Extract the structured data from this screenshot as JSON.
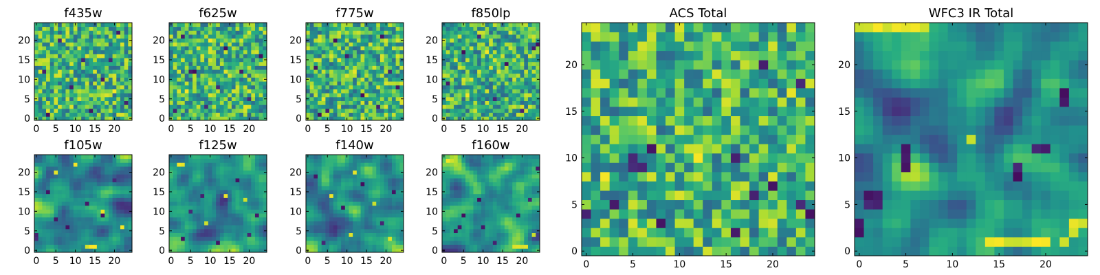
{
  "figure": {
    "colormap": "viridis",
    "colors": [
      "#440154",
      "#3b528b",
      "#21918c",
      "#5ec962",
      "#fde725"
    ],
    "background": "#ffffff"
  },
  "chart_data": [
    {
      "type": "heatmap",
      "title": "f435w",
      "grid_size": 25,
      "x_ticks": [
        0,
        5,
        10,
        15,
        20
      ],
      "y_ticks": [
        0,
        5,
        10,
        15,
        20
      ],
      "value_range": [
        0,
        1
      ],
      "texture": "noise",
      "dark_spots": [
        [
          3,
          1
        ],
        [
          9,
          8
        ],
        [
          12,
          15
        ],
        [
          17,
          10
        ],
        [
          19,
          15
        ],
        [
          23,
          4
        ],
        [
          6,
          20
        ],
        [
          14,
          2
        ],
        [
          21,
          22
        ],
        [
          2,
          12
        ]
      ],
      "bright_spots": [
        [
          5,
          5
        ],
        [
          11,
          18
        ],
        [
          20,
          7
        ],
        [
          8,
          22
        ],
        [
          15,
          12
        ]
      ]
    },
    {
      "type": "heatmap",
      "title": "f625w",
      "grid_size": 25,
      "x_ticks": [
        0,
        5,
        10,
        15,
        20
      ],
      "y_ticks": [
        0,
        5,
        10,
        15,
        20
      ],
      "value_range": [
        0,
        1
      ],
      "texture": "noise",
      "dark_spots": [
        [
          5,
          12
        ],
        [
          6,
          12
        ],
        [
          1,
          2
        ],
        [
          9,
          3
        ],
        [
          20,
          5
        ],
        [
          14,
          18
        ],
        [
          18,
          12
        ],
        [
          23,
          16
        ],
        [
          12,
          8
        ],
        [
          3,
          21
        ]
      ],
      "bright_spots": [
        [
          14,
          12
        ],
        [
          10,
          20
        ],
        [
          19,
          3
        ],
        [
          4,
          7
        ]
      ]
    },
    {
      "type": "heatmap",
      "title": "f775w",
      "grid_size": 25,
      "x_ticks": [
        0,
        5,
        10,
        15,
        20
      ],
      "y_ticks": [
        0,
        5,
        10,
        15,
        20
      ],
      "value_range": [
        0,
        1
      ],
      "texture": "noise",
      "dark_spots": [
        [
          3,
          1
        ],
        [
          5,
          2
        ],
        [
          18,
          3
        ],
        [
          23,
          8
        ],
        [
          21,
          12
        ],
        [
          10,
          16
        ],
        [
          14,
          6
        ],
        [
          7,
          20
        ],
        [
          2,
          13
        ],
        [
          19,
          21
        ]
      ],
      "bright_spots": [
        [
          12,
          12
        ],
        [
          8,
          15
        ],
        [
          16,
          19
        ],
        [
          4,
          5
        ]
      ]
    },
    {
      "type": "heatmap",
      "title": "f850lp",
      "grid_size": 25,
      "x_ticks": [
        0,
        5,
        10,
        15,
        20
      ],
      "y_ticks": [
        0,
        5,
        10,
        15,
        20
      ],
      "value_range": [
        0,
        1
      ],
      "texture": "noise",
      "dark_spots": [
        [
          23,
          18
        ],
        [
          24,
          19
        ],
        [
          1,
          9
        ],
        [
          13,
          5
        ],
        [
          16,
          14
        ],
        [
          5,
          17
        ],
        [
          20,
          2
        ],
        [
          9,
          21
        ]
      ],
      "bright_spots": [
        [
          6,
          6
        ],
        [
          18,
          10
        ],
        [
          11,
          17
        ],
        [
          2,
          20
        ]
      ]
    },
    {
      "type": "heatmap",
      "title": "f105w",
      "grid_size": 25,
      "x_ticks": [
        0,
        5,
        10,
        15,
        20
      ],
      "y_ticks": [
        0,
        5,
        10,
        15,
        20
      ],
      "value_range": [
        0,
        1
      ],
      "texture": "smooth",
      "dark_spots": [
        [
          0,
          3
        ],
        [
          0,
          4
        ],
        [
          5,
          8
        ],
        [
          8,
          6
        ],
        [
          17,
          9
        ],
        [
          13,
          12
        ],
        [
          3,
          15
        ],
        [
          20,
          18
        ]
      ],
      "bright_spots": [
        [
          13,
          1
        ],
        [
          14,
          1
        ],
        [
          15,
          1
        ],
        [
          17,
          10
        ],
        [
          5,
          20
        ],
        [
          10,
          22
        ],
        [
          22,
          6
        ]
      ]
    },
    {
      "type": "heatmap",
      "title": "f125w",
      "grid_size": 25,
      "x_ticks": [
        0,
        5,
        10,
        15,
        20
      ],
      "y_ticks": [
        0,
        5,
        10,
        15,
        20
      ],
      "value_range": [
        0,
        1
      ],
      "texture": "smooth",
      "dark_spots": [
        [
          22,
          9
        ],
        [
          3,
          3
        ],
        [
          12,
          2
        ],
        [
          8,
          14
        ],
        [
          17,
          18
        ],
        [
          5,
          10
        ],
        [
          20,
          4
        ]
      ],
      "bright_spots": [
        [
          2,
          22
        ],
        [
          3,
          22
        ],
        [
          14,
          14
        ],
        [
          19,
          13
        ],
        [
          9,
          7
        ]
      ]
    },
    {
      "type": "heatmap",
      "title": "f140w",
      "grid_size": 25,
      "x_ticks": [
        0,
        5,
        10,
        15,
        20
      ],
      "y_ticks": [
        0,
        5,
        10,
        15,
        20
      ],
      "value_range": [
        0,
        1
      ],
      "texture": "smooth",
      "dark_spots": [
        [
          4,
          2
        ],
        [
          19,
          7
        ],
        [
          9,
          11
        ],
        [
          14,
          17
        ],
        [
          22,
          15
        ],
        [
          2,
          19
        ]
      ],
      "bright_spots": [
        [
          11,
          4
        ],
        [
          6,
          14
        ],
        [
          17,
          12
        ],
        [
          12,
          20
        ],
        [
          21,
          3
        ]
      ]
    },
    {
      "type": "heatmap",
      "title": "f160w",
      "grid_size": 25,
      "x_ticks": [
        0,
        5,
        10,
        15,
        20
      ],
      "y_ticks": [
        0,
        5,
        10,
        15,
        20
      ],
      "value_range": [
        0,
        1
      ],
      "texture": "smooth",
      "dark_spots": [
        [
          3,
          5
        ],
        [
          4,
          6
        ],
        [
          5,
          9
        ],
        [
          10,
          6
        ],
        [
          19,
          9
        ],
        [
          22,
          13
        ],
        [
          9,
          13
        ],
        [
          13,
          2
        ],
        [
          24,
          21
        ]
      ],
      "bright_spots": [
        [
          18,
          1
        ],
        [
          19,
          1
        ],
        [
          20,
          1
        ],
        [
          21,
          1
        ],
        [
          1,
          23
        ],
        [
          2,
          23
        ],
        [
          23,
          4
        ]
      ]
    },
    {
      "type": "heatmap",
      "title": "ACS Total",
      "grid_size": 25,
      "x_ticks": [
        0,
        5,
        10,
        15,
        20
      ],
      "y_ticks": [
        0,
        5,
        10,
        15,
        20
      ],
      "value_range": [
        0,
        1
      ],
      "texture": "noise",
      "dark_spots": [
        [
          0,
          4
        ],
        [
          5,
          10
        ],
        [
          5,
          9
        ],
        [
          6,
          9
        ],
        [
          3,
          5
        ],
        [
          8,
          3
        ],
        [
          16,
          10
        ],
        [
          19,
          20
        ],
        [
          23,
          18
        ],
        [
          20,
          7
        ],
        [
          18,
          6
        ],
        [
          23,
          5
        ],
        [
          24,
          4
        ],
        [
          16,
          2
        ],
        [
          7,
          11
        ]
      ],
      "bright_spots": [
        [
          11,
          11
        ],
        [
          12,
          11
        ],
        [
          12,
          10
        ],
        [
          14,
          19
        ],
        [
          15,
          18
        ],
        [
          0,
          24
        ],
        [
          1,
          24
        ],
        [
          22,
          17
        ],
        [
          6,
          14
        ],
        [
          2,
          8
        ]
      ]
    },
    {
      "type": "heatmap",
      "title": "WFC3 IR Total",
      "grid_size": 25,
      "x_ticks": [
        0,
        5,
        10,
        15,
        20
      ],
      "y_ticks": [
        0,
        5,
        10,
        15,
        20
      ],
      "value_range": [
        0,
        1
      ],
      "texture": "smooth",
      "dark_spots": [
        [
          0,
          2
        ],
        [
          0,
          3
        ],
        [
          1,
          5
        ],
        [
          1,
          6
        ],
        [
          2,
          6
        ],
        [
          2,
          5
        ],
        [
          5,
          9
        ],
        [
          5,
          10
        ],
        [
          5,
          11
        ],
        [
          17,
          8
        ],
        [
          17,
          9
        ],
        [
          20,
          11
        ],
        [
          19,
          11
        ],
        [
          22,
          17
        ],
        [
          22,
          16
        ]
      ],
      "bright_spots": [
        [
          0,
          24
        ],
        [
          1,
          24
        ],
        [
          2,
          24
        ],
        [
          3,
          24
        ],
        [
          4,
          24
        ],
        [
          5,
          24
        ],
        [
          6,
          24
        ],
        [
          7,
          24
        ],
        [
          14,
          1
        ],
        [
          15,
          1
        ],
        [
          16,
          1
        ],
        [
          17,
          1
        ],
        [
          18,
          1
        ],
        [
          19,
          1
        ],
        [
          20,
          1
        ],
        [
          22,
          1
        ],
        [
          23,
          2
        ],
        [
          23,
          3
        ],
        [
          24,
          3
        ],
        [
          12,
          12
        ]
      ]
    }
  ]
}
